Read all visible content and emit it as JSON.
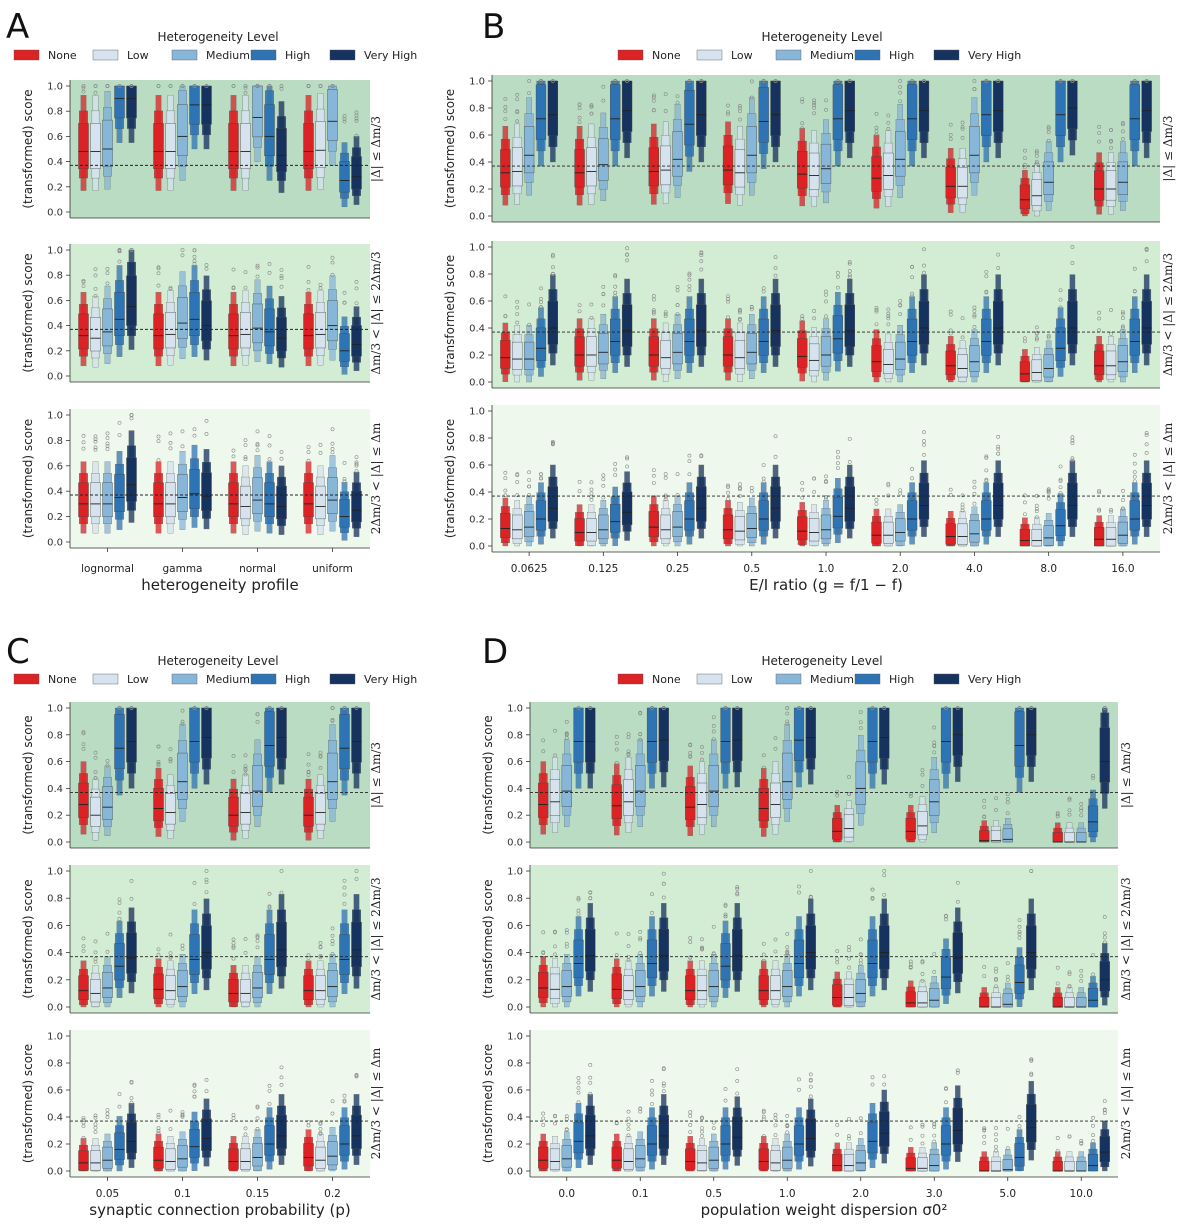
{
  "colors": {
    "levels": [
      "#dd2226",
      "#d6e3ef",
      "#88b6d8",
      "#2e74b5",
      "#16325f"
    ],
    "bands": [
      "#b9dcc3",
      "#d3edd4",
      "#eef8ec"
    ],
    "outlier": "#888888"
  },
  "chart_data": [
    {
      "panel": "A",
      "type": "boxen",
      "legend_title": "Heterogeneity Level",
      "legend": [
        "None",
        "Low",
        "Medium",
        "High",
        "Very High"
      ],
      "xlabel": "heterogeneity profile",
      "ylabel": "(transformed) score",
      "ylim": [
        0,
        1
      ],
      "yticks": [
        "0.0",
        "0.2",
        "0.4",
        "0.6",
        "0.8",
        "1.0"
      ],
      "reference_line": 0.37,
      "categories": [
        "lognormal",
        "gamma",
        "normal",
        "uniform"
      ],
      "rows": [
        {
          "label": "|Δ| ≤ Δm/3",
          "medians": [
            [
              0.48,
              0.48,
              0.5,
              0.9,
              0.9
            ],
            [
              0.48,
              0.48,
              0.6,
              0.85,
              0.85
            ],
            [
              0.48,
              0.48,
              0.75,
              0.6,
              0.45
            ],
            [
              0.48,
              0.49,
              0.72,
              0.25,
              0.28
            ]
          ]
        },
        {
          "label": "Δm/3 < |Δ| ≤ 2Δm/3",
          "medians": [
            [
              0.32,
              0.3,
              0.35,
              0.45,
              0.55
            ],
            [
              0.32,
              0.33,
              0.42,
              0.45,
              0.4
            ],
            [
              0.32,
              0.33,
              0.38,
              0.35,
              0.3
            ],
            [
              0.32,
              0.33,
              0.4,
              0.2,
              0.25
            ]
          ]
        },
        {
          "label": "2Δm/3 < |Δ| ≤ Δm",
          "medians": [
            [
              0.3,
              0.3,
              0.3,
              0.35,
              0.45
            ],
            [
              0.3,
              0.3,
              0.35,
              0.38,
              0.36
            ],
            [
              0.3,
              0.28,
              0.33,
              0.3,
              0.28
            ],
            [
              0.3,
              0.28,
              0.33,
              0.2,
              0.25
            ]
          ]
        }
      ]
    },
    {
      "panel": "B",
      "type": "boxen",
      "legend_title": "Heterogeneity Level",
      "legend": [
        "None",
        "Low",
        "Medium",
        "High",
        "Very High"
      ],
      "xlabel": "E/I ratio (g = f/1 − f)",
      "ylabel": "(transformed) score",
      "ylim": [
        0,
        1
      ],
      "yticks": [
        "0.0",
        "0.2",
        "0.4",
        "0.6",
        "0.8",
        "1.0"
      ],
      "reference_line": 0.37,
      "categories": [
        "0.0625",
        "0.125",
        "0.25",
        "0.5",
        "1.0",
        "2.0",
        "4.0",
        "8.0",
        "16.0"
      ],
      "rows": [
        {
          "label": "|Δ| ≤ Δm/3",
          "medians": [
            [
              0.32,
              0.33,
              0.45,
              0.72,
              0.75
            ],
            [
              0.32,
              0.33,
              0.38,
              0.72,
              0.78
            ],
            [
              0.33,
              0.34,
              0.42,
              0.68,
              0.75
            ],
            [
              0.34,
              0.32,
              0.45,
              0.7,
              0.75
            ],
            [
              0.31,
              0.3,
              0.35,
              0.72,
              0.78
            ],
            [
              0.28,
              0.3,
              0.42,
              0.72,
              0.78
            ],
            [
              0.22,
              0.22,
              0.45,
              0.75,
              0.78
            ],
            [
              0.12,
              0.15,
              0.25,
              0.75,
              0.8
            ],
            [
              0.2,
              0.2,
              0.25,
              0.72,
              0.78
            ]
          ]
        },
        {
          "label": "Δm/3 < |Δ| ≤ 2Δm/3",
          "medians": [
            [
              0.18,
              0.17,
              0.17,
              0.25,
              0.4
            ],
            [
              0.2,
              0.2,
              0.22,
              0.3,
              0.38
            ],
            [
              0.2,
              0.18,
              0.22,
              0.3,
              0.38
            ],
            [
              0.2,
              0.18,
              0.22,
              0.3,
              0.38
            ],
            [
              0.19,
              0.16,
              0.2,
              0.32,
              0.38
            ],
            [
              0.15,
              0.13,
              0.17,
              0.3,
              0.4
            ],
            [
              0.12,
              0.1,
              0.15,
              0.3,
              0.4
            ],
            [
              0.06,
              0.07,
              0.1,
              0.25,
              0.4
            ],
            [
              0.12,
              0.12,
              0.15,
              0.3,
              0.4
            ]
          ]
        },
        {
          "label": "2Δm/3 < |Δ| ≤ Δm",
          "medians": [
            [
              0.13,
              0.12,
              0.14,
              0.2,
              0.28
            ],
            [
              0.1,
              0.1,
              0.12,
              0.18,
              0.25
            ],
            [
              0.14,
              0.12,
              0.14,
              0.2,
              0.28
            ],
            [
              0.12,
              0.11,
              0.13,
              0.2,
              0.28
            ],
            [
              0.11,
              0.1,
              0.12,
              0.22,
              0.28
            ],
            [
              0.08,
              0.08,
              0.1,
              0.2,
              0.3
            ],
            [
              0.07,
              0.07,
              0.09,
              0.2,
              0.3
            ],
            [
              0.04,
              0.04,
              0.06,
              0.15,
              0.3
            ],
            [
              0.05,
              0.05,
              0.08,
              0.2,
              0.3
            ]
          ]
        }
      ]
    },
    {
      "panel": "C",
      "type": "boxen",
      "legend_title": "Heterogeneity Level",
      "legend": [
        "None",
        "Low",
        "Medium",
        "High",
        "Very High"
      ],
      "xlabel": "synaptic connection probability (p)",
      "ylabel": "(transformed) score",
      "ylim": [
        0,
        1
      ],
      "yticks": [
        "0.0",
        "0.2",
        "0.4",
        "0.6",
        "0.8",
        "1.0"
      ],
      "reference_line": 0.37,
      "categories": [
        "0.05",
        "0.1",
        "0.15",
        "0.2"
      ],
      "rows": [
        {
          "label": "|Δ| ≤ Δm/3",
          "medians": [
            [
              0.28,
              0.2,
              0.26,
              0.7,
              0.75
            ],
            [
              0.25,
              0.22,
              0.45,
              0.75,
              0.78
            ],
            [
              0.2,
              0.22,
              0.38,
              0.72,
              0.78
            ],
            [
              0.2,
              0.22,
              0.45,
              0.7,
              0.75
            ]
          ]
        },
        {
          "label": "Δm/3 < |Δ| ≤ 2Δm/3",
          "medians": [
            [
              0.12,
              0.1,
              0.14,
              0.3,
              0.36
            ],
            [
              0.13,
              0.12,
              0.15,
              0.35,
              0.4
            ],
            [
              0.1,
              0.1,
              0.14,
              0.35,
              0.42
            ],
            [
              0.12,
              0.12,
              0.15,
              0.35,
              0.42
            ]
          ]
        },
        {
          "label": "2Δm/3 < |Δ| ≤ Δm",
          "medians": [
            [
              0.06,
              0.06,
              0.08,
              0.16,
              0.22
            ],
            [
              0.08,
              0.07,
              0.09,
              0.18,
              0.24
            ],
            [
              0.07,
              0.07,
              0.1,
              0.2,
              0.26
            ],
            [
              0.1,
              0.08,
              0.11,
              0.2,
              0.26
            ]
          ]
        }
      ]
    },
    {
      "panel": "D",
      "type": "boxen",
      "legend_title": "Heterogeneity Level",
      "legend": [
        "None",
        "Low",
        "Medium",
        "High",
        "Very High"
      ],
      "xlabel": "population weight dispersion σ0²",
      "ylabel": "(transformed) score",
      "ylim": [
        0,
        1
      ],
      "yticks": [
        "0.0",
        "0.2",
        "0.4",
        "0.6",
        "0.8",
        "1.0"
      ],
      "reference_line": 0.37,
      "categories": [
        "0.0",
        "0.1",
        "0.5",
        "1.0",
        "2.0",
        "3.0",
        "5.0",
        "10.0"
      ],
      "rows": [
        {
          "label": "|Δ| ≤ Δm/3",
          "medians": [
            [
              0.28,
              0.3,
              0.38,
              0.75,
              0.75
            ],
            [
              0.27,
              0.3,
              0.38,
              0.75,
              0.76
            ],
            [
              0.26,
              0.28,
              0.38,
              0.75,
              0.76
            ],
            [
              0.25,
              0.28,
              0.45,
              0.76,
              0.78
            ],
            [
              0.08,
              0.1,
              0.4,
              0.75,
              0.78
            ],
            [
              0.08,
              0.12,
              0.3,
              0.75,
              0.8
            ],
            [
              0.01,
              0.01,
              0.02,
              0.72,
              0.8
            ],
            [
              0.0,
              0.0,
              0.0,
              0.15,
              0.6
            ]
          ]
        },
        {
          "label": "Δm/3 < |Δ| ≤ 2Δm/3",
          "medians": [
            [
              0.14,
              0.13,
              0.15,
              0.32,
              0.38
            ],
            [
              0.13,
              0.12,
              0.15,
              0.32,
              0.38
            ],
            [
              0.12,
              0.12,
              0.15,
              0.3,
              0.38
            ],
            [
              0.12,
              0.12,
              0.15,
              0.32,
              0.4
            ],
            [
              0.07,
              0.07,
              0.1,
              0.32,
              0.4
            ],
            [
              0.03,
              0.03,
              0.05,
              0.22,
              0.36
            ],
            [
              0.0,
              0.0,
              0.02,
              0.18,
              0.4
            ],
            [
              0.0,
              0.0,
              0.0,
              0.05,
              0.2
            ]
          ]
        },
        {
          "label": "2Δm/3 < |Δ| ≤ Δm",
          "medians": [
            [
              0.08,
              0.07,
              0.09,
              0.22,
              0.26
            ],
            [
              0.08,
              0.07,
              0.09,
              0.2,
              0.26
            ],
            [
              0.07,
              0.06,
              0.08,
              0.2,
              0.25
            ],
            [
              0.07,
              0.06,
              0.08,
              0.2,
              0.24
            ],
            [
              0.04,
              0.04,
              0.06,
              0.22,
              0.28
            ],
            [
              0.02,
              0.02,
              0.04,
              0.2,
              0.3
            ],
            [
              0.0,
              0.0,
              0.01,
              0.1,
              0.32
            ],
            [
              0.0,
              0.0,
              0.0,
              0.04,
              0.14
            ]
          ]
        }
      ]
    }
  ],
  "axis_labels": {
    "A": {
      "xlabel": "heterogeneity profile",
      "ylabel": "(transformed) score"
    },
    "B": {
      "xlabel": "E/I ratio (g = f/1 − f)",
      "ylabel": "(transformed) score"
    },
    "C": {
      "xlabel": "synaptic connection probability (p)",
      "ylabel": "(transformed) score"
    },
    "D": {
      "xlabel": "population weight dispersion σ0²",
      "ylabel": "(transformed) score"
    }
  }
}
